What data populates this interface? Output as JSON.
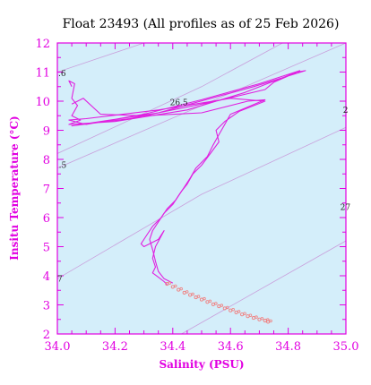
{
  "chart_data": {
    "type": "line",
    "title": "Float 23493  (All profiles as of 25 Feb 2026)",
    "xlabel": "Salinity (PSU)",
    "ylabel": "Insitu Temperature (°C)",
    "xlim": [
      34.0,
      35.0
    ],
    "ylim": [
      2,
      12
    ],
    "x_ticks": [
      "34.0",
      "34.2",
      "34.4",
      "34.6",
      "34.8",
      "35.0"
    ],
    "y_ticks": [
      "2",
      "3",
      "4",
      "5",
      "6",
      "7",
      "8",
      "9",
      "10",
      "11",
      "12"
    ],
    "grid": false,
    "colors": {
      "plot_background": "#d4eefa",
      "axis": "#e100e1",
      "profile": "#e020e0",
      "deep_samples": "#f08080",
      "contour": "#c9a0dc"
    },
    "density_contours": [
      {
        "label": ".6",
        "points": [
          [
            34.0,
            11.0
          ],
          [
            34.3,
            12.0
          ]
        ]
      },
      {
        "label": "26.5",
        "points": [
          [
            34.0,
            8.2
          ],
          [
            34.5,
            10.5
          ],
          [
            34.78,
            12.0
          ]
        ]
      },
      {
        "label": ".5",
        "points": [
          [
            34.0,
            7.7
          ],
          [
            35.0,
            12.0
          ]
        ]
      },
      {
        "label": "27",
        "points": [
          [
            34.0,
            3.9
          ],
          [
            34.5,
            6.8
          ],
          [
            35.0,
            9.1
          ]
        ]
      },
      {
        "label": "27",
        "points": [
          [
            34.43,
            2.0
          ],
          [
            35.0,
            5.2
          ]
        ]
      }
    ],
    "contour_labels": [
      {
        "text": ".6",
        "s": 34.003,
        "t": 10.96
      },
      {
        "text": "26.5",
        "s": 34.39,
        "t": 9.95
      },
      {
        "text": ".5",
        "s": 34.005,
        "t": 7.8
      },
      {
        "text": "2",
        "s": 34.99,
        "t": 9.7
      },
      {
        "text": "27",
        "s": 34.98,
        "t": 6.35
      },
      {
        "text": "7",
        "s": 34.0,
        "t": 3.9
      }
    ],
    "series": [
      {
        "style": "line",
        "values": [
          [
            34.05,
            10.5
          ],
          [
            34.04,
            10.7
          ],
          [
            34.06,
            10.6
          ],
          [
            34.05,
            10.1
          ],
          [
            34.07,
            9.85
          ],
          [
            34.05,
            9.5
          ],
          [
            34.08,
            9.35
          ],
          [
            34.04,
            9.2
          ],
          [
            34.2,
            9.3
          ],
          [
            34.45,
            9.7
          ],
          [
            34.65,
            10.3
          ],
          [
            34.83,
            11.0
          ],
          [
            34.86,
            11.05
          ],
          [
            34.68,
            10.5
          ],
          [
            34.35,
            9.6
          ],
          [
            34.05,
            9.15
          ],
          [
            34.25,
            9.4
          ],
          [
            34.55,
            10.0
          ],
          [
            34.72,
            10.4
          ],
          [
            34.75,
            10.65
          ],
          [
            34.82,
            10.95
          ],
          [
            34.84,
            11.05
          ],
          [
            34.7,
            10.6
          ],
          [
            34.5,
            10.05
          ],
          [
            34.3,
            9.55
          ],
          [
            34.1,
            9.2
          ],
          [
            34.04,
            9.35
          ],
          [
            34.1,
            9.4
          ],
          [
            34.35,
            9.7
          ],
          [
            34.6,
            10.1
          ],
          [
            34.72,
            10.0
          ],
          [
            34.63,
            9.65
          ],
          [
            34.58,
            9.3
          ],
          [
            34.55,
            9.0
          ],
          [
            34.56,
            8.6
          ],
          [
            34.53,
            8.2
          ],
          [
            34.5,
            7.8
          ],
          [
            34.47,
            7.5
          ],
          [
            34.45,
            7.15
          ],
          [
            34.43,
            6.9
          ],
          [
            34.41,
            6.6
          ],
          [
            34.38,
            6.3
          ],
          [
            34.36,
            6.0
          ],
          [
            34.33,
            5.7
          ],
          [
            34.31,
            5.4
          ],
          [
            34.29,
            5.1
          ],
          [
            34.3,
            5.0
          ],
          [
            34.35,
            5.25
          ],
          [
            34.37,
            5.55
          ],
          [
            34.34,
            5.0
          ],
          [
            34.33,
            4.6
          ],
          [
            34.34,
            4.3
          ],
          [
            34.33,
            4.1
          ],
          [
            34.35,
            3.95
          ],
          [
            34.37,
            3.8
          ],
          [
            34.38,
            3.7
          ]
        ]
      },
      {
        "style": "line",
        "values": [
          [
            34.05,
            9.9
          ],
          [
            34.09,
            10.1
          ],
          [
            34.15,
            9.55
          ],
          [
            34.3,
            9.5
          ],
          [
            34.5,
            9.6
          ],
          [
            34.66,
            10.0
          ],
          [
            34.72,
            10.05
          ],
          [
            34.6,
            9.55
          ],
          [
            34.58,
            9.2
          ],
          [
            34.56,
            8.85
          ],
          [
            34.54,
            8.5
          ],
          [
            34.52,
            8.1
          ],
          [
            34.48,
            7.7
          ],
          [
            34.46,
            7.35
          ],
          [
            34.44,
            7.05
          ],
          [
            34.42,
            6.75
          ],
          [
            34.4,
            6.45
          ],
          [
            34.37,
            6.15
          ],
          [
            34.35,
            5.85
          ],
          [
            34.33,
            5.55
          ],
          [
            34.32,
            5.25
          ],
          [
            34.33,
            4.9
          ],
          [
            34.34,
            4.5
          ],
          [
            34.35,
            4.15
          ],
          [
            34.37,
            3.9
          ],
          [
            34.4,
            3.75
          ]
        ]
      },
      {
        "style": "points",
        "values": [
          [
            34.38,
            3.72
          ],
          [
            34.4,
            3.62
          ],
          [
            34.42,
            3.52
          ],
          [
            34.44,
            3.42
          ],
          [
            34.46,
            3.34
          ],
          [
            34.48,
            3.26
          ],
          [
            34.5,
            3.18
          ],
          [
            34.52,
            3.1
          ],
          [
            34.54,
            3.02
          ],
          [
            34.56,
            2.95
          ],
          [
            34.58,
            2.88
          ],
          [
            34.6,
            2.81
          ],
          [
            34.62,
            2.74
          ],
          [
            34.64,
            2.67
          ],
          [
            34.66,
            2.61
          ],
          [
            34.68,
            2.55
          ],
          [
            34.7,
            2.5
          ],
          [
            34.72,
            2.46
          ],
          [
            34.73,
            2.42
          ]
        ]
      }
    ]
  }
}
